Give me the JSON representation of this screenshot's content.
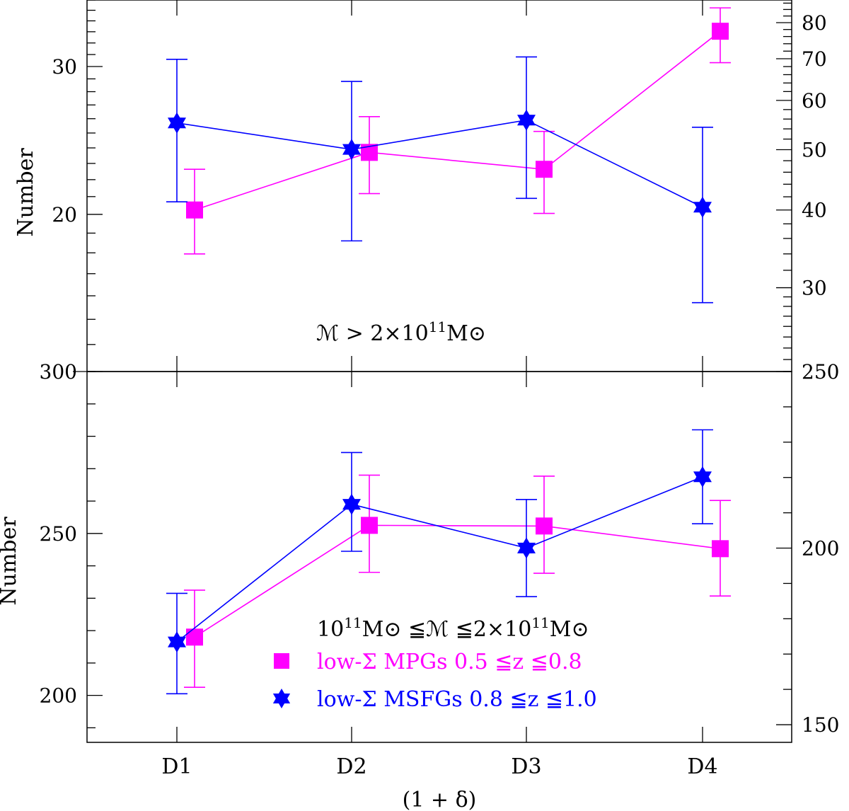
{
  "chart_data": [
    {
      "panel": "top",
      "type": "scatter",
      "categories": [
        "D1",
        "D2",
        "D3",
        "D4"
      ],
      "ylabel": "Number",
      "ylim": [
        13,
        36
      ],
      "yscale": "log",
      "left_ticks": [
        20,
        30
      ],
      "right_axis": {
        "ylim": [
          22,
          87
        ],
        "ticks": [
          30,
          40,
          50,
          60,
          70,
          80
        ],
        "scale": "log"
      },
      "annotation": {
        "prefix": "ℳ > 2×10",
        "sup": "11",
        "suffix": "M⊙"
      },
      "series": [
        {
          "name": "low-Σ MPGs",
          "axis": "right",
          "color": "#ff00ff",
          "marker": "square",
          "values": [
            40,
            49.5,
            46.5,
            77.5
          ],
          "err_lo": [
            34,
            42.5,
            39.5,
            69
          ],
          "err_hi": [
            46.5,
            56.5,
            53.5,
            84.5
          ]
        },
        {
          "name": "low-Σ MSFGs",
          "axis": "left",
          "color": "#0000ff",
          "marker": "star",
          "values": [
            25.7,
            23.9,
            25.9,
            20.4
          ],
          "err_lo": [
            20.7,
            18.6,
            20.9,
            15.7
          ],
          "err_hi": [
            30.6,
            28.8,
            30.8,
            25.4
          ]
        }
      ]
    },
    {
      "panel": "bottom",
      "type": "scatter",
      "categories": [
        "D1",
        "D2",
        "D3",
        "D4"
      ],
      "xlabel": "(1 + δ)",
      "ylabel": "Number",
      "ylim": [
        185.5,
        300
      ],
      "left_ticks": [
        200,
        250,
        300
      ],
      "right_axis": {
        "ylim": [
          145,
          250
        ],
        "ticks": [
          150,
          200,
          250
        ]
      },
      "legend": {
        "title": {
          "a": "10",
          "sup1": "11",
          "b": "M⊙ ≦ℳ ≦2×10",
          "sup2": "11",
          "c": "M⊙"
        },
        "entries": [
          {
            "label": "low-Σ  MPGs 0.5 ≦z ≦0.8",
            "color": "#ff00ff",
            "marker": "square"
          },
          {
            "label": "low-Σ  MSFGs 0.8 ≦z ≦1.0",
            "color": "#0000ff",
            "marker": "star"
          }
        ]
      },
      "series": [
        {
          "name": "low-Σ MPGs",
          "axis": "left",
          "color": "#ff00ff",
          "marker": "square",
          "values": [
            218,
            252.5,
            252.3,
            245.3
          ],
          "err_lo": [
            202.5,
            238,
            237.7,
            230.7
          ],
          "err_hi": [
            232.5,
            268,
            267.7,
            260.2
          ]
        },
        {
          "name": "low-Σ MSFGs",
          "axis": "left",
          "color": "#0000ff",
          "marker": "star",
          "values": [
            216.5,
            259,
            245.5,
            267.5
          ],
          "err_lo": [
            200.5,
            244.5,
            230.5,
            253
          ],
          "err_hi": [
            231.5,
            275,
            260.5,
            282
          ]
        }
      ]
    }
  ]
}
